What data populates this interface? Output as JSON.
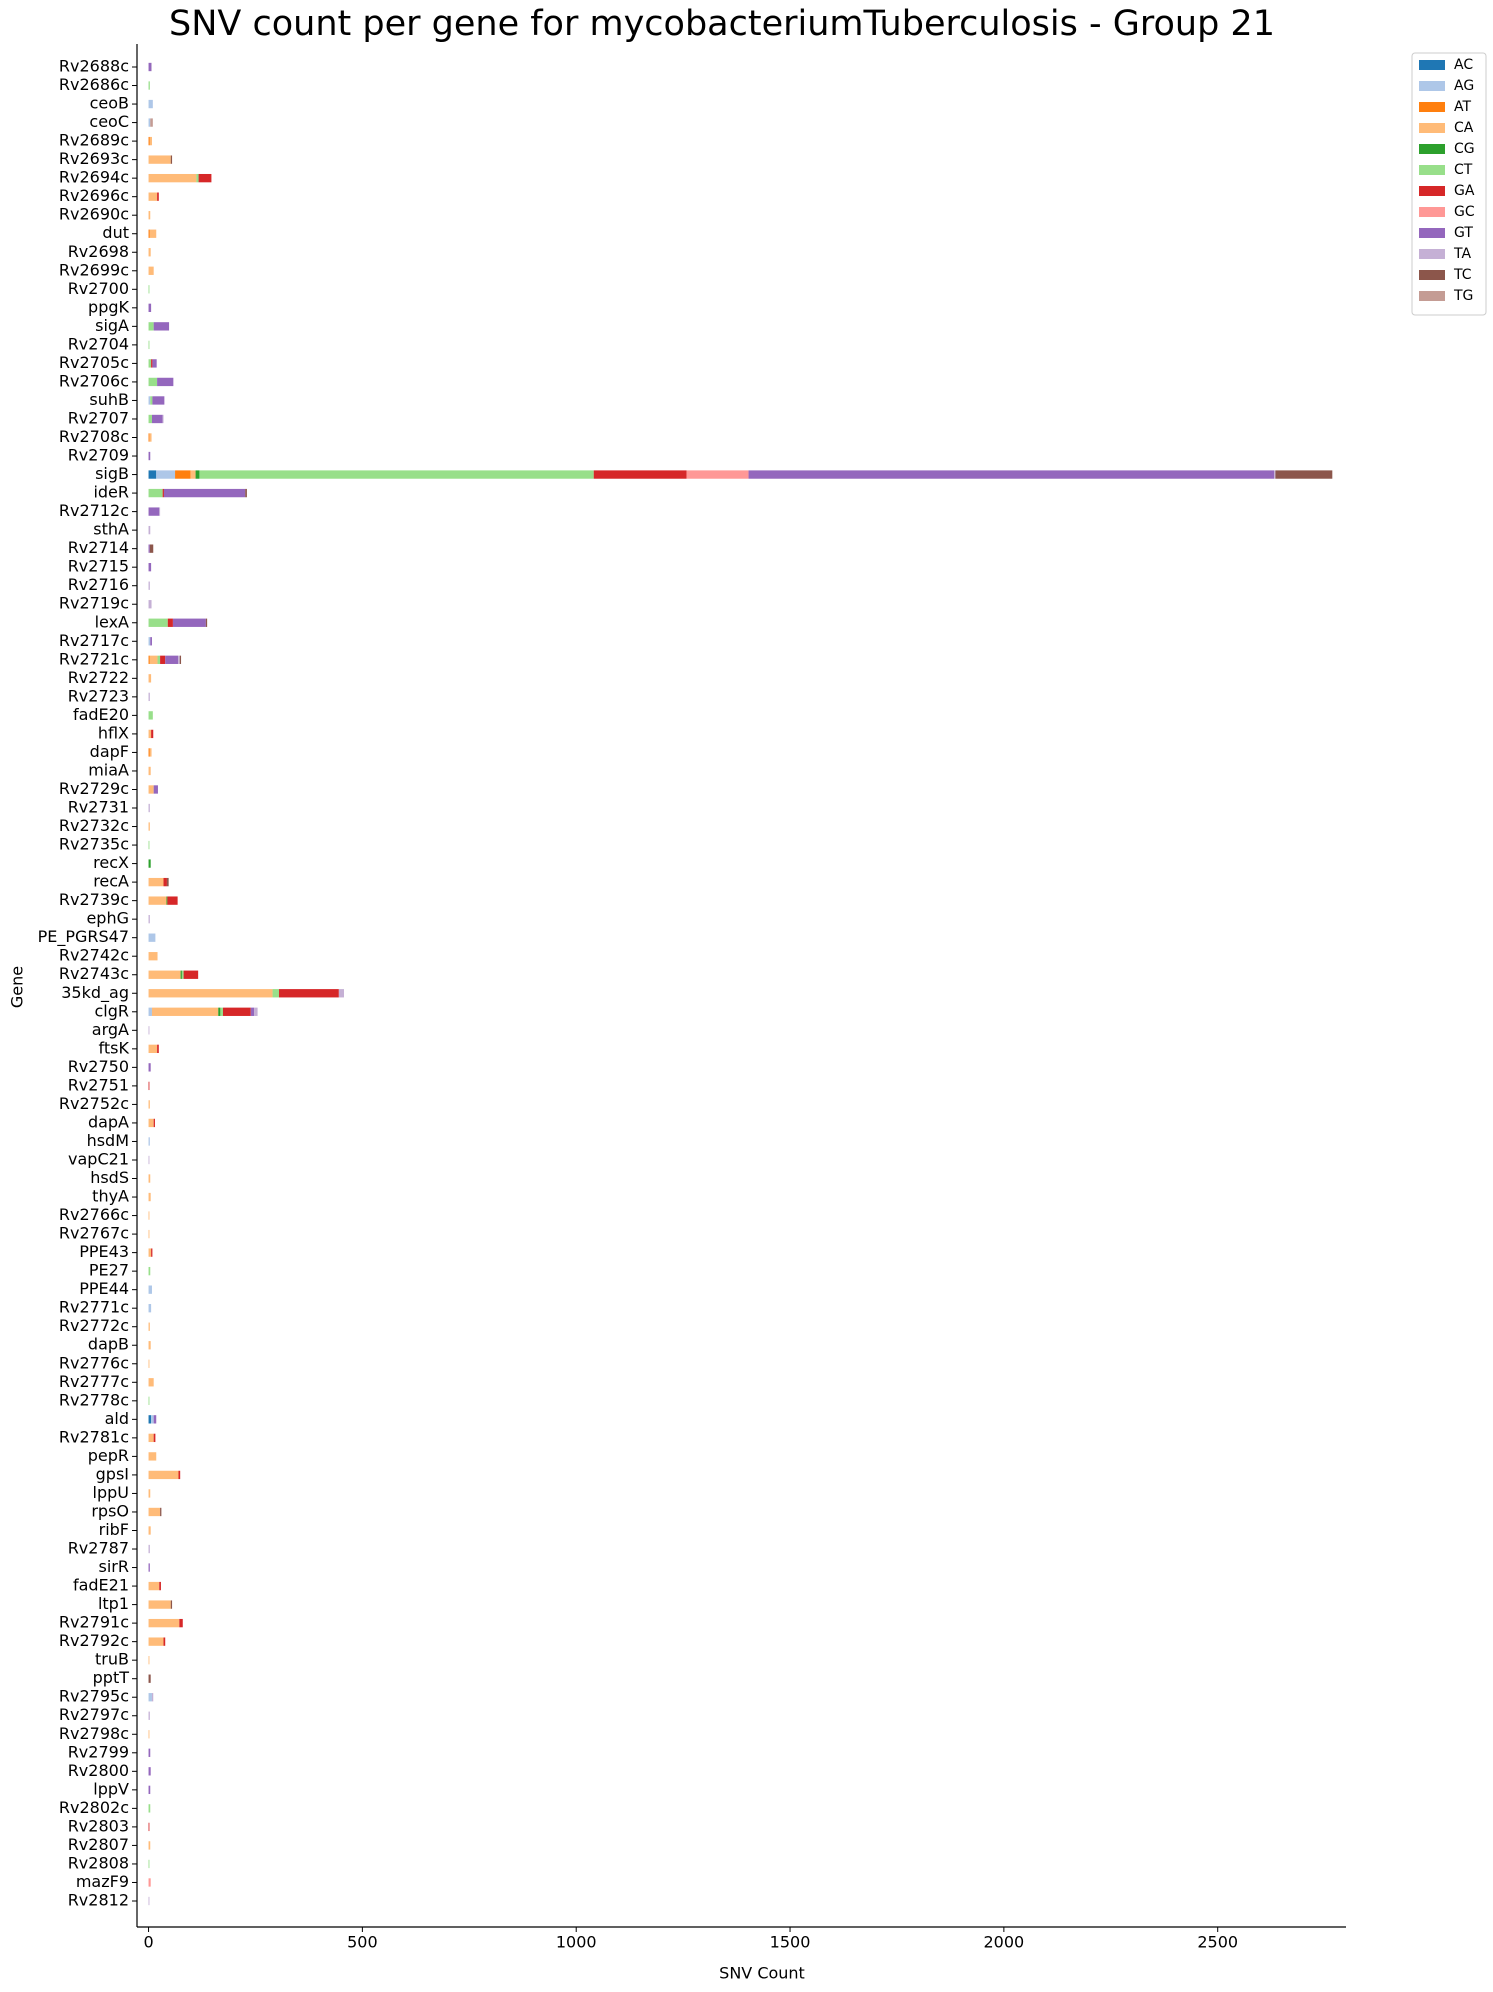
{
  "chart_data": {
    "type": "bar",
    "orientation": "horizontal",
    "stacked": true,
    "title": "SNV count per gene for mycobacteriumTuberculosis - Group 21",
    "x_label": "SNV Count",
    "y_label": "Gene",
    "categories": [
      "Rv2688c",
      "Rv2686c",
      "ceoB",
      "ceoC",
      "Rv2689c",
      "Rv2693c",
      "Rv2694c",
      "Rv2696c",
      "Rv2690c",
      "dut",
      "Rv2698",
      "Rv2699c",
      "Rv2700",
      "ppgK",
      "sigA",
      "Rv2704",
      "Rv2705c",
      "Rv2706c",
      "suhB",
      "Rv2707",
      "Rv2708c",
      "Rv2709",
      "sigB",
      "ideR",
      "Rv2712c",
      "sthA",
      "Rv2714",
      "Rv2715",
      "Rv2716",
      "Rv2719c",
      "lexA",
      "Rv2717c",
      "Rv2721c",
      "Rv2722",
      "Rv2723",
      "fadE20",
      "hflX",
      "dapF",
      "miaA",
      "Rv2729c",
      "Rv2731",
      "Rv2732c",
      "Rv2735c",
      "recX",
      "recA",
      "Rv2739c",
      "ephG",
      "PE_PGRS47",
      "Rv2742c",
      "Rv2743c",
      "35kd_ag",
      "clgR",
      "argA",
      "ftsK",
      "Rv2750",
      "Rv2751",
      "Rv2752c",
      "dapA",
      "hsdM",
      "vapC21",
      "hsdS",
      "thyA",
      "Rv2766c",
      "Rv2767c",
      "PPE43",
      "PE27",
      "PPE44",
      "Rv2771c",
      "Rv2772c",
      "dapB",
      "Rv2776c",
      "Rv2777c",
      "Rv2778c",
      "ald",
      "Rv2781c",
      "pepR",
      "gpsI",
      "lppU",
      "rpsO",
      "ribF",
      "Rv2787",
      "sirR",
      "fadE21",
      "ltp1",
      "Rv2791c",
      "Rv2792c",
      "truB",
      "pptT",
      "Rv2795c",
      "Rv2797c",
      "Rv2798c",
      "Rv2799",
      "Rv2800",
      "lppV",
      "Rv2802c",
      "Rv2803",
      "Rv2807",
      "Rv2808",
      "mazF9",
      "Rv2812"
    ],
    "series": [
      {
        "name": "AC",
        "color": "#1f77b4",
        "values": [
          0,
          0,
          0,
          0,
          0,
          0,
          0,
          0,
          0,
          0,
          0,
          0,
          0,
          0,
          0,
          0,
          0,
          0,
          0,
          0,
          0,
          0,
          18,
          0,
          0,
          0,
          0,
          0,
          0,
          0,
          0,
          0,
          0,
          0,
          0,
          0,
          0,
          0,
          0,
          0,
          0,
          0,
          0,
          0,
          0,
          0,
          0,
          0,
          0,
          0,
          0,
          0,
          0,
          0,
          0,
          0,
          0,
          0,
          0,
          0,
          0,
          0,
          0,
          0,
          0,
          0,
          0,
          0,
          0,
          0,
          0,
          0,
          0,
          6,
          0,
          0,
          0,
          0,
          0,
          0,
          0,
          0,
          0,
          0,
          0,
          0,
          0,
          0,
          0,
          0,
          0,
          0,
          0,
          0,
          0,
          0,
          0,
          0,
          0,
          0
        ]
      },
      {
        "name": "AG",
        "color": "#aec7e8",
        "values": [
          0,
          0,
          10,
          4,
          0,
          0,
          0,
          0,
          0,
          0,
          0,
          0,
          0,
          0,
          0,
          0,
          0,
          0,
          4,
          0,
          0,
          0,
          44,
          0,
          0,
          0,
          0,
          0,
          0,
          0,
          0,
          4,
          0,
          0,
          0,
          0,
          0,
          0,
          0,
          0,
          0,
          0,
          0,
          0,
          0,
          0,
          0,
          16,
          0,
          0,
          0,
          8,
          0,
          0,
          0,
          0,
          0,
          0,
          3,
          0,
          0,
          0,
          0,
          0,
          0,
          0,
          8,
          6,
          0,
          0,
          0,
          0,
          0,
          6,
          0,
          0,
          0,
          0,
          0,
          0,
          0,
          0,
          0,
          0,
          0,
          0,
          0,
          0,
          8,
          0,
          0,
          0,
          0,
          0,
          0,
          0,
          0,
          0,
          0,
          0
        ]
      },
      {
        "name": "AT",
        "color": "#ff7f0e",
        "values": [
          0,
          0,
          0,
          0,
          3,
          0,
          0,
          0,
          0,
          3,
          0,
          0,
          0,
          0,
          0,
          0,
          0,
          0,
          0,
          0,
          2,
          0,
          36,
          0,
          0,
          0,
          0,
          0,
          0,
          0,
          0,
          0,
          3,
          0,
          0,
          0,
          0,
          3,
          0,
          0,
          0,
          0,
          0,
          0,
          0,
          0,
          0,
          0,
          0,
          0,
          0,
          0,
          0,
          0,
          0,
          0,
          0,
          0,
          0,
          0,
          0,
          0,
          0,
          0,
          0,
          0,
          0,
          0,
          0,
          0,
          0,
          0,
          0,
          0,
          0,
          0,
          0,
          0,
          0,
          0,
          0,
          0,
          0,
          0,
          0,
          0,
          0,
          0,
          0,
          0,
          0,
          0,
          0,
          0,
          0,
          0,
          0,
          0,
          0,
          0
        ]
      },
      {
        "name": "CA",
        "color": "#ffbb78",
        "values": [
          0,
          0,
          0,
          0,
          5,
          52,
          112,
          20,
          4,
          15,
          5,
          12,
          0,
          0,
          0,
          0,
          0,
          0,
          0,
          0,
          5,
          0,
          12,
          0,
          0,
          0,
          0,
          0,
          0,
          0,
          0,
          0,
          18,
          6,
          0,
          0,
          6,
          4,
          5,
          12,
          0,
          3,
          0,
          0,
          35,
          42,
          0,
          0,
          21,
          75,
          290,
          155,
          0,
          20,
          0,
          0,
          3,
          12,
          0,
          0,
          4,
          5,
          2,
          2,
          6,
          0,
          0,
          0,
          3,
          5,
          2,
          12,
          0,
          0,
          12,
          18,
          70,
          4,
          27,
          5,
          0,
          0,
          25,
          52,
          72,
          35,
          2,
          0,
          0,
          0,
          2,
          0,
          0,
          0,
          0,
          0,
          4,
          0,
          0,
          0
        ]
      },
      {
        "name": "CG",
        "color": "#2ca02c",
        "values": [
          0,
          0,
          0,
          0,
          0,
          0,
          0,
          0,
          0,
          0,
          0,
          0,
          0,
          0,
          0,
          0,
          0,
          0,
          0,
          0,
          0,
          0,
          9,
          0,
          0,
          0,
          0,
          0,
          0,
          0,
          0,
          0,
          0,
          0,
          0,
          0,
          0,
          0,
          0,
          0,
          0,
          0,
          0,
          5,
          0,
          2,
          0,
          0,
          0,
          3,
          0,
          5,
          0,
          0,
          0,
          0,
          0,
          0,
          0,
          0,
          0,
          0,
          0,
          0,
          0,
          0,
          0,
          0,
          0,
          0,
          0,
          0,
          0,
          0,
          0,
          0,
          0,
          0,
          0,
          0,
          0,
          0,
          0,
          0,
          0,
          0,
          0,
          0,
          0,
          0,
          0,
          0,
          0,
          0,
          0,
          0,
          0,
          0,
          0,
          0
        ]
      },
      {
        "name": "CT",
        "color": "#98df8a",
        "values": [
          0,
          3,
          0,
          0,
          0,
          0,
          5,
          0,
          0,
          0,
          0,
          0,
          2,
          0,
          12,
          2,
          6,
          20,
          5,
          8,
          0,
          0,
          922,
          33,
          0,
          0,
          0,
          0,
          0,
          0,
          45,
          0,
          6,
          0,
          0,
          10,
          0,
          0,
          0,
          0,
          0,
          0,
          2,
          0,
          0,
          0,
          0,
          0,
          0,
          4,
          15,
          6,
          0,
          0,
          0,
          0,
          0,
          0,
          0,
          0,
          0,
          0,
          0,
          0,
          0,
          4,
          0,
          0,
          0,
          0,
          0,
          0,
          2,
          0,
          0,
          0,
          0,
          0,
          0,
          0,
          0,
          0,
          0,
          0,
          0,
          0,
          0,
          0,
          0,
          0,
          0,
          0,
          0,
          0,
          4,
          0,
          0,
          2,
          0,
          0
        ]
      },
      {
        "name": "GA",
        "color": "#d62728",
        "values": [
          0,
          0,
          0,
          0,
          0,
          0,
          30,
          4,
          0,
          0,
          0,
          0,
          0,
          0,
          0,
          0,
          3,
          0,
          0,
          0,
          0,
          0,
          217,
          3,
          0,
          0,
          0,
          0,
          0,
          0,
          12,
          0,
          12,
          0,
          0,
          0,
          5,
          0,
          0,
          0,
          0,
          0,
          0,
          0,
          8,
          24,
          0,
          0,
          0,
          34,
          140,
          65,
          0,
          4,
          0,
          2,
          0,
          3,
          0,
          0,
          0,
          0,
          0,
          0,
          3,
          0,
          0,
          0,
          0,
          0,
          0,
          0,
          0,
          0,
          4,
          0,
          4,
          0,
          0,
          0,
          0,
          0,
          4,
          0,
          8,
          4,
          0,
          0,
          0,
          0,
          0,
          0,
          0,
          0,
          0,
          2,
          0,
          0,
          0,
          0
        ]
      },
      {
        "name": "GC",
        "color": "#ff9896",
        "values": [
          0,
          0,
          0,
          0,
          0,
          0,
          0,
          0,
          0,
          0,
          0,
          0,
          0,
          0,
          0,
          0,
          0,
          0,
          0,
          0,
          0,
          0,
          145,
          0,
          0,
          0,
          0,
          0,
          0,
          0,
          0,
          0,
          0,
          0,
          0,
          0,
          0,
          0,
          0,
          0,
          0,
          0,
          0,
          0,
          0,
          0,
          0,
          0,
          0,
          0,
          0,
          0,
          0,
          0,
          0,
          0,
          0,
          0,
          0,
          0,
          0,
          0,
          0,
          0,
          0,
          0,
          0,
          0,
          0,
          0,
          0,
          0,
          0,
          0,
          0,
          0,
          0,
          0,
          0,
          0,
          0,
          0,
          0,
          0,
          0,
          0,
          0,
          0,
          0,
          0,
          0,
          0,
          0,
          0,
          0,
          0,
          0,
          0,
          5,
          0
        ]
      },
      {
        "name": "GT",
        "color": "#9467bd",
        "values": [
          6,
          0,
          0,
          0,
          0,
          0,
          0,
          0,
          0,
          0,
          0,
          0,
          0,
          6,
          36,
          0,
          10,
          38,
          28,
          25,
          0,
          4,
          1229,
          190,
          25,
          0,
          3,
          6,
          0,
          0,
          77,
          4,
          30,
          0,
          0,
          0,
          0,
          0,
          0,
          10,
          0,
          0,
          0,
          0,
          0,
          0,
          0,
          0,
          0,
          0,
          0,
          8,
          0,
          0,
          5,
          0,
          0,
          0,
          0,
          0,
          0,
          0,
          0,
          0,
          0,
          0,
          0,
          0,
          0,
          0,
          0,
          0,
          0,
          6,
          0,
          0,
          0,
          0,
          0,
          0,
          0,
          3,
          0,
          0,
          0,
          0,
          0,
          0,
          0,
          0,
          0,
          4,
          5,
          4,
          0,
          0,
          0,
          0,
          0,
          0
        ]
      },
      {
        "name": "TA",
        "color": "#c5b0d5",
        "values": [
          2,
          0,
          0,
          0,
          0,
          0,
          0,
          0,
          0,
          0,
          0,
          0,
          0,
          0,
          0,
          0,
          0,
          0,
          0,
          2,
          0,
          0,
          3,
          0,
          2,
          4,
          0,
          0,
          3,
          7,
          0,
          0,
          4,
          0,
          3,
          0,
          0,
          0,
          0,
          0,
          3,
          0,
          0,
          0,
          0,
          0,
          3,
          0,
          0,
          0,
          12,
          8,
          2,
          0,
          0,
          0,
          0,
          0,
          0,
          2,
          0,
          0,
          0,
          0,
          0,
          0,
          0,
          0,
          0,
          0,
          0,
          0,
          0,
          0,
          0,
          0,
          0,
          0,
          0,
          0,
          3,
          0,
          0,
          0,
          0,
          0,
          0,
          0,
          3,
          3,
          0,
          0,
          0,
          0,
          0,
          0,
          0,
          0,
          0,
          2
        ]
      },
      {
        "name": "TC",
        "color": "#8c564b",
        "values": [
          0,
          0,
          0,
          0,
          0,
          3,
          0,
          0,
          0,
          0,
          0,
          0,
          0,
          0,
          0,
          0,
          0,
          0,
          0,
          0,
          0,
          0,
          133,
          4,
          0,
          0,
          8,
          0,
          0,
          0,
          3,
          0,
          3,
          0,
          0,
          0,
          0,
          0,
          0,
          0,
          0,
          0,
          0,
          0,
          4,
          0,
          0,
          0,
          0,
          0,
          0,
          0,
          0,
          0,
          0,
          0,
          0,
          0,
          0,
          0,
          0,
          0,
          0,
          0,
          0,
          0,
          0,
          0,
          0,
          0,
          0,
          0,
          0,
          0,
          0,
          0,
          0,
          0,
          3,
          0,
          0,
          0,
          0,
          3,
          0,
          0,
          0,
          5,
          0,
          0,
          0,
          0,
          0,
          0,
          0,
          0,
          0,
          0,
          0,
          0
        ]
      },
      {
        "name": "TG",
        "color": "#c49c94",
        "values": [
          0,
          0,
          0,
          6,
          0,
          0,
          0,
          0,
          0,
          0,
          0,
          0,
          0,
          0,
          0,
          0,
          0,
          0,
          0,
          0,
          0,
          0,
          0,
          0,
          0,
          0,
          0,
          0,
          0,
          0,
          0,
          0,
          0,
          0,
          0,
          0,
          0,
          0,
          0,
          0,
          0,
          0,
          0,
          0,
          0,
          0,
          0,
          0,
          0,
          0,
          0,
          0,
          0,
          0,
          0,
          0,
          0,
          0,
          0,
          0,
          0,
          0,
          0,
          0,
          0,
          0,
          0,
          0,
          0,
          0,
          0,
          0,
          0,
          0,
          0,
          0,
          0,
          0,
          0,
          0,
          0,
          0,
          0,
          0,
          0,
          0,
          0,
          0,
          0,
          0,
          0,
          0,
          0,
          0,
          0,
          0,
          0,
          0,
          0,
          0
        ]
      }
    ],
    "xlim": [
      -27,
      2800
    ],
    "xticks": [
      0,
      500,
      1000,
      1500,
      2000,
      2500
    ],
    "legend": "outside upper right",
    "grid": false
  }
}
